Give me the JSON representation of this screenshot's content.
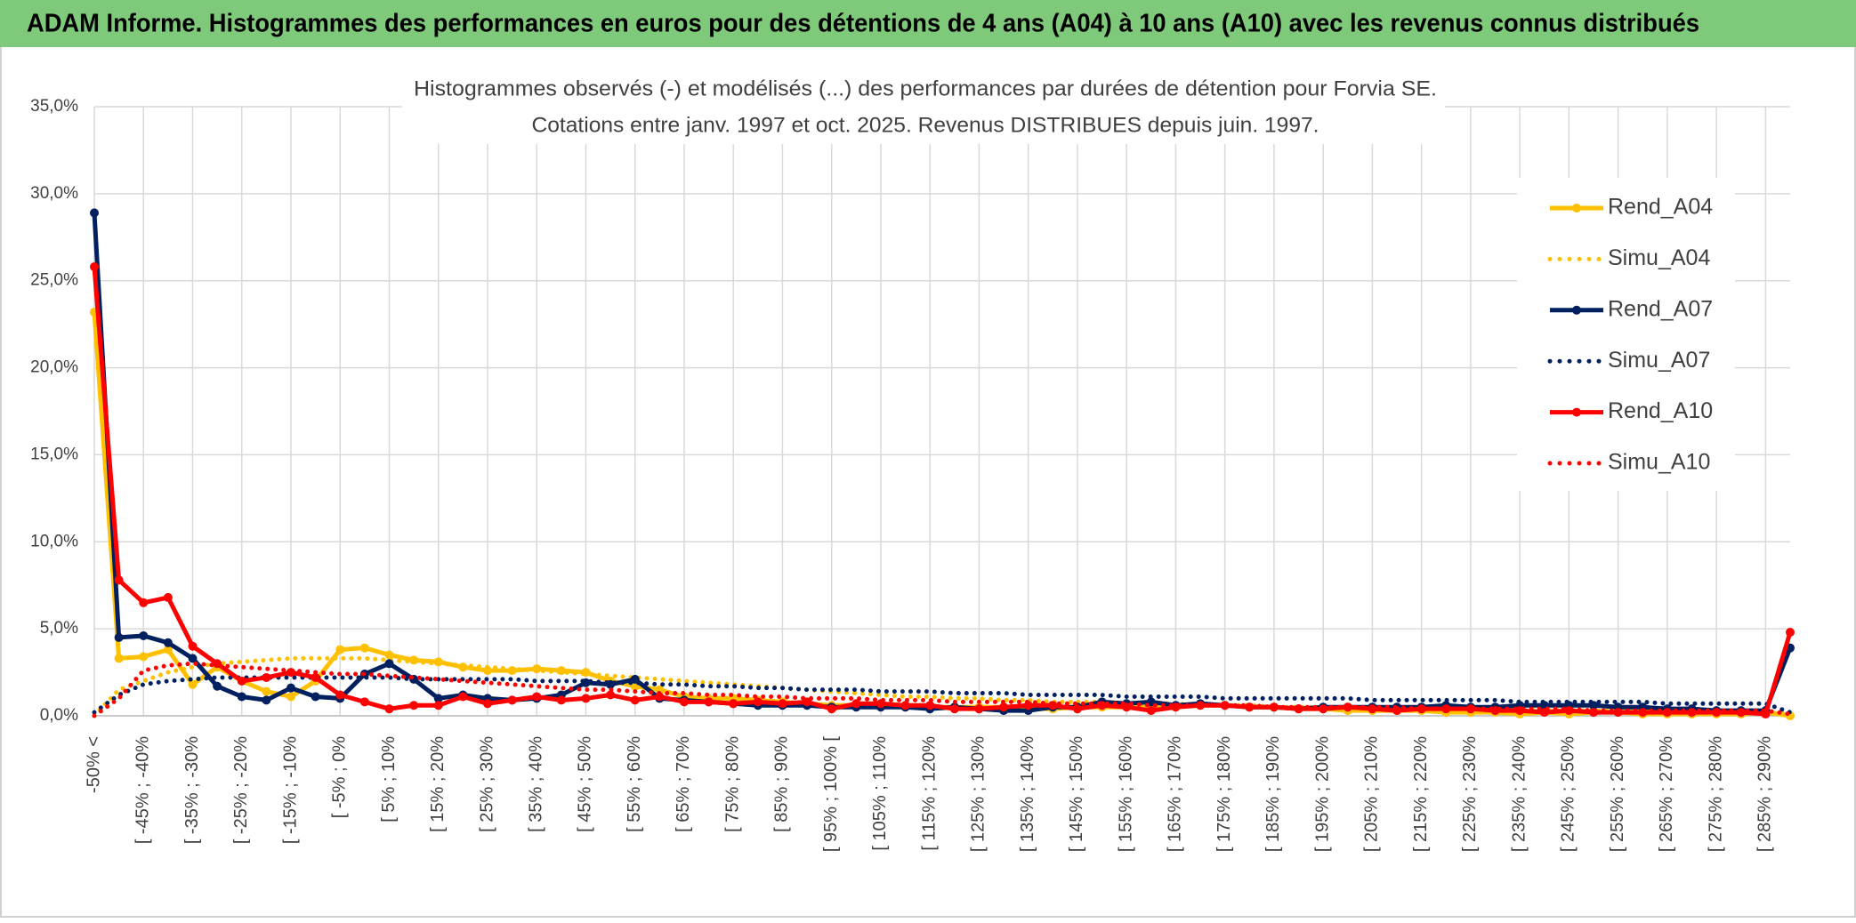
{
  "header": {
    "title": "ADAM Informe. Histogrammes des performances en euros pour des détentions de 4 ans (A04) à 10 ans (A10) avec les revenus connus distribués"
  },
  "chart_data": {
    "type": "line",
    "title": "Histogrammes observés (-) et modélisés (...) des performances par durées de détention pour Forvia SE.",
    "subtitle": "Cotations entre janv. 1997 et oct. 2025. Revenus DISTRIBUES depuis juin. 1997.",
    "categories": [
      "-50% <",
      null,
      "[ -45% ; -40%",
      null,
      "[ -35% ; -30%",
      null,
      "[ -25% ; -20%",
      null,
      "[ -15% ; -10%",
      null,
      "[ -5% ; 0%",
      null,
      "[ 5% ; 10%",
      null,
      "[ 15% ; 20%",
      null,
      "[ 25% ; 30%",
      null,
      "[ 35% ; 40%",
      null,
      "[ 45% ; 50%",
      null,
      "[ 55% ; 60%",
      null,
      "[ 65% ; 70%",
      null,
      "[ 75% ; 80%",
      null,
      "[ 85% ; 90%",
      null,
      "[ 95% ; 100% [",
      null,
      "[ 105% ; 110%",
      null,
      "[ 115% ; 120%",
      null,
      "[ 125% ; 130%",
      null,
      "[ 135% ; 140%",
      null,
      "[ 145% ; 150%",
      null,
      "[ 155% ; 160%",
      null,
      "[ 165% ; 170%",
      null,
      "[ 175% ; 180%",
      null,
      "[ 185% ; 190%",
      null,
      "[ 195% ; 200%",
      null,
      "[ 205% ; 210%",
      null,
      "[ 215% ; 220%",
      null,
      "[ 225% ; 230%",
      null,
      "[ 235% ; 240%",
      null,
      "[ 245% ; 250%",
      null,
      "[ 255% ; 260%",
      null,
      "[ 265% ; 270%",
      null,
      "[ 275% ; 280%",
      null,
      "[ 285% ; 290%",
      null
    ],
    "series": [
      {
        "name": "Rend_A04",
        "color": "#ffc000",
        "style": "solid",
        "marker": true,
        "values": [
          23.2,
          3.3,
          3.4,
          3.8,
          1.8,
          2.8,
          2.0,
          1.4,
          1.1,
          2.0,
          3.8,
          3.9,
          3.5,
          3.2,
          3.1,
          2.8,
          2.6,
          2.6,
          2.7,
          2.6,
          2.5,
          2.0,
          1.7,
          1.5,
          1.1,
          1.0,
          1.0,
          0.9,
          0.8,
          0.7,
          0.6,
          0.6,
          0.6,
          0.5,
          0.5,
          0.5,
          0.5,
          0.5,
          0.4,
          0.4,
          0.5,
          0.5,
          0.5,
          0.5,
          0.5,
          0.6,
          0.6,
          0.5,
          0.5,
          0.4,
          0.4,
          0.3,
          0.3,
          0.3,
          0.3,
          0.2,
          0.2,
          0.2,
          0.1,
          0.2,
          0.1,
          0.2,
          0.2,
          0.1,
          0.1,
          0.1,
          0.1,
          0.1,
          0.2,
          0.0
        ]
      },
      {
        "name": "Simu_A04",
        "color": "#ffc000",
        "style": "dotted",
        "marker": false,
        "values": [
          0.0,
          1.5,
          2.0,
          2.5,
          2.8,
          3.0,
          3.1,
          3.2,
          3.3,
          3.3,
          3.3,
          3.3,
          3.2,
          3.1,
          3.0,
          2.9,
          2.8,
          2.7,
          2.6,
          2.5,
          2.4,
          2.3,
          2.2,
          2.1,
          2.0,
          1.9,
          1.8,
          1.7,
          1.6,
          1.5,
          1.4,
          1.3,
          1.2,
          1.1,
          1.1,
          1.0,
          1.0,
          0.9,
          0.9,
          0.8,
          0.8,
          0.8,
          0.7,
          0.7,
          0.7,
          0.6,
          0.6,
          0.6,
          0.5,
          0.5,
          0.5,
          0.5,
          0.4,
          0.4,
          0.4,
          0.4,
          0.4,
          0.3,
          0.3,
          0.3,
          0.3,
          0.3,
          0.3,
          0.3,
          0.2,
          0.2,
          0.2,
          0.2,
          0.2,
          0.1
        ]
      },
      {
        "name": "Rend_A07",
        "color": "#002060",
        "style": "solid",
        "marker": true,
        "values": [
          28.9,
          4.5,
          4.6,
          4.2,
          3.3,
          1.7,
          1.1,
          0.9,
          1.6,
          1.1,
          1.0,
          2.4,
          3.0,
          2.1,
          1.0,
          1.2,
          1.0,
          0.9,
          1.0,
          1.2,
          1.9,
          1.8,
          2.1,
          1.0,
          0.9,
          0.8,
          0.7,
          0.6,
          0.6,
          0.6,
          0.5,
          0.5,
          0.5,
          0.5,
          0.4,
          0.5,
          0.4,
          0.3,
          0.3,
          0.5,
          0.5,
          0.8,
          0.7,
          0.8,
          0.6,
          0.7,
          0.6,
          0.5,
          0.5,
          0.4,
          0.5,
          0.5,
          0.5,
          0.5,
          0.5,
          0.6,
          0.5,
          0.5,
          0.6,
          0.6,
          0.6,
          0.6,
          0.5,
          0.5,
          0.4,
          0.4,
          0.3,
          0.3,
          0.3,
          3.9
        ]
      },
      {
        "name": "Simu_A07",
        "color": "#002060",
        "style": "dotted",
        "marker": false,
        "values": [
          0.2,
          1.2,
          1.8,
          2.0,
          2.1,
          2.2,
          2.2,
          2.2,
          2.2,
          2.2,
          2.2,
          2.2,
          2.2,
          2.1,
          2.1,
          2.1,
          2.1,
          2.1,
          2.0,
          2.0,
          2.0,
          1.9,
          1.9,
          1.8,
          1.8,
          1.7,
          1.7,
          1.6,
          1.6,
          1.5,
          1.5,
          1.5,
          1.4,
          1.4,
          1.4,
          1.3,
          1.3,
          1.3,
          1.2,
          1.2,
          1.2,
          1.2,
          1.1,
          1.1,
          1.1,
          1.1,
          1.0,
          1.0,
          1.0,
          1.0,
          1.0,
          1.0,
          0.9,
          0.9,
          0.9,
          0.9,
          0.9,
          0.9,
          0.8,
          0.8,
          0.8,
          0.8,
          0.8,
          0.8,
          0.7,
          0.7,
          0.7,
          0.7,
          0.7,
          0.2
        ]
      },
      {
        "name": "Rend_A10",
        "color": "#ff0000",
        "style": "solid",
        "marker": true,
        "values": [
          25.8,
          7.8,
          6.5,
          6.8,
          4.0,
          3.0,
          2.0,
          2.2,
          2.5,
          2.2,
          1.2,
          0.8,
          0.4,
          0.6,
          0.6,
          1.1,
          0.7,
          0.9,
          1.1,
          0.9,
          1.0,
          1.2,
          0.9,
          1.1,
          0.8,
          0.8,
          0.7,
          0.8,
          0.7,
          0.8,
          0.4,
          0.7,
          0.7,
          0.6,
          0.6,
          0.4,
          0.4,
          0.5,
          0.6,
          0.6,
          0.4,
          0.6,
          0.5,
          0.3,
          0.5,
          0.6,
          0.6,
          0.5,
          0.5,
          0.4,
          0.4,
          0.5,
          0.4,
          0.3,
          0.4,
          0.4,
          0.4,
          0.3,
          0.3,
          0.2,
          0.3,
          0.2,
          0.2,
          0.2,
          0.2,
          0.2,
          0.2,
          0.2,
          0.1,
          4.8
        ]
      },
      {
        "name": "Simu_A10",
        "color": "#ff0000",
        "style": "dotted",
        "marker": false,
        "values": [
          0.0,
          1.0,
          2.6,
          2.9,
          3.0,
          2.9,
          2.8,
          2.7,
          2.6,
          2.5,
          2.4,
          2.4,
          2.3,
          2.2,
          2.1,
          2.0,
          1.9,
          1.8,
          1.7,
          1.6,
          1.5,
          1.5,
          1.4,
          1.3,
          1.3,
          1.2,
          1.2,
          1.1,
          1.1,
          1.0,
          1.0,
          1.0,
          0.9,
          0.9,
          0.9,
          0.8,
          0.8,
          0.8,
          0.8,
          0.7,
          0.7,
          0.7,
          0.7,
          0.6,
          0.6,
          0.6,
          0.6,
          0.6,
          0.5,
          0.5,
          0.5,
          0.5,
          0.5,
          0.5,
          0.4,
          0.4,
          0.4,
          0.4,
          0.4,
          0.4,
          0.4,
          0.3,
          0.3,
          0.3,
          0.3,
          0.3,
          0.3,
          0.3,
          0.3,
          0.1
        ]
      }
    ],
    "ylim": [
      0,
      35
    ],
    "yticks": [
      {
        "value": 0,
        "label": "0,0%"
      },
      {
        "value": 5,
        "label": "5,0%"
      },
      {
        "value": 10,
        "label": "10,0%"
      },
      {
        "value": 15,
        "label": "15,0%"
      },
      {
        "value": 20,
        "label": "20,0%"
      },
      {
        "value": 25,
        "label": "25,0%"
      },
      {
        "value": 30,
        "label": "30,0%"
      },
      {
        "value": 35,
        "label": "35,0%"
      }
    ],
    "grid": true,
    "legend": "right"
  }
}
